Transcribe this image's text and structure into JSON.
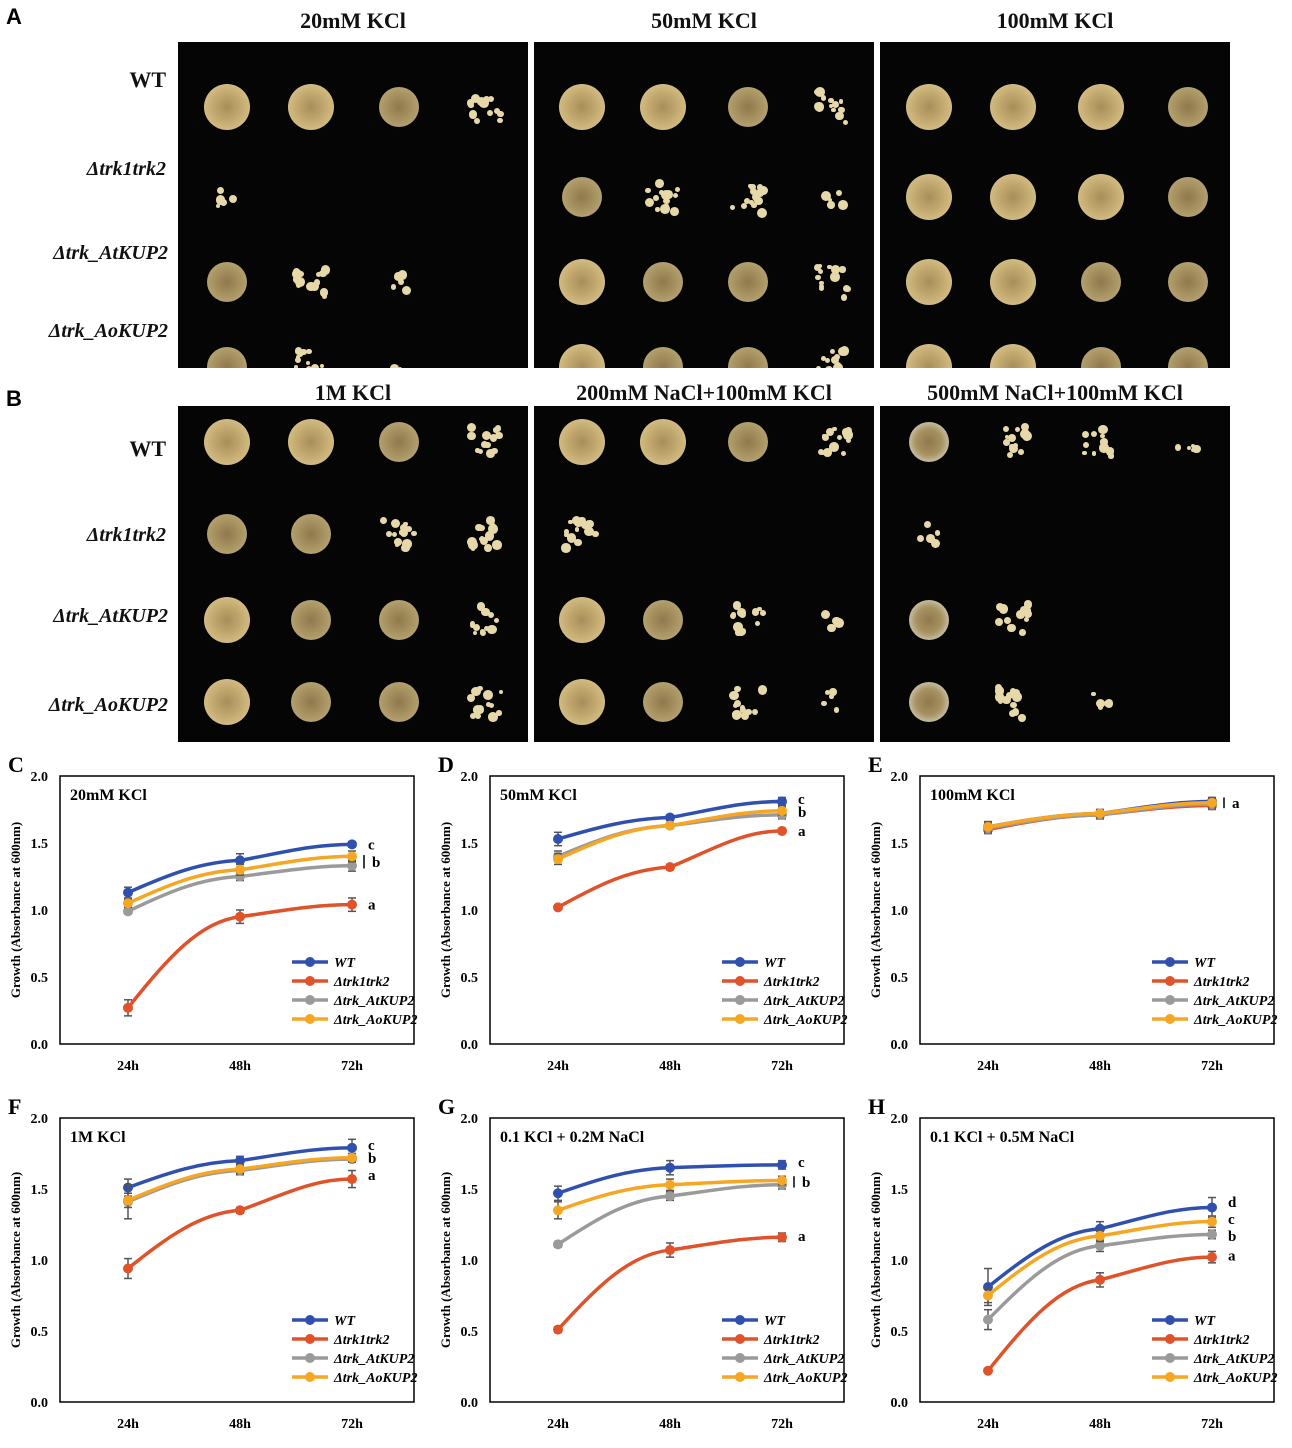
{
  "colors": {
    "WT": "#3050b0",
    "trk": "#e0522a",
    "AtKUP2": "#9a9a9a",
    "AoKUP2": "#f5a623",
    "plate": "#050505",
    "colony": "#d7c28a"
  },
  "spot_assay": {
    "panel_A": {
      "letter": "A",
      "conditions": [
        "20mM KCl",
        "50mM KCl",
        "100mM KCl"
      ]
    },
    "panel_B": {
      "letter": "B",
      "conditions": [
        "1M KCl",
        "200mM NaCl+100mM KCl",
        "500mM NaCl+100mM KCl"
      ]
    },
    "row_labels": [
      "WT",
      "Δtrk1trk2",
      "Δtrk_AtKUP2",
      "Δtrk_AoKUP2"
    ],
    "growth_scores_A": [
      [
        [
          4,
          4,
          3,
          2
        ],
        [
          1,
          0,
          0,
          0
        ],
        [
          3,
          2,
          1,
          0
        ],
        [
          3,
          2,
          1,
          0
        ]
      ],
      [
        [
          4,
          4,
          3,
          2
        ],
        [
          3,
          2,
          2,
          1
        ],
        [
          4,
          3,
          3,
          2
        ],
        [
          4,
          3,
          3,
          2
        ]
      ],
      [
        [
          4,
          4,
          4,
          3
        ],
        [
          4,
          4,
          4,
          3
        ],
        [
          4,
          4,
          3,
          3
        ],
        [
          4,
          4,
          3,
          3
        ]
      ]
    ],
    "growth_scores_B": [
      [
        [
          4,
          4,
          3,
          2
        ],
        [
          3,
          3,
          2,
          2
        ],
        [
          4,
          3,
          3,
          2
        ],
        [
          4,
          3,
          3,
          2
        ]
      ],
      [
        [
          4,
          4,
          3,
          2
        ],
        [
          2,
          0,
          0,
          0
        ],
        [
          4,
          3,
          2,
          1
        ],
        [
          4,
          3,
          2,
          1
        ]
      ],
      [
        [
          3,
          2,
          2,
          1
        ],
        [
          1,
          0,
          0,
          0
        ],
        [
          3,
          2,
          0,
          0
        ],
        [
          3,
          2,
          1,
          0
        ]
      ]
    ]
  },
  "chart_data": [
    {
      "letter": "C",
      "type": "line",
      "title": "20mM KCl",
      "ylabel": "Growth (Absorbance at 600nm)",
      "x": [
        "24h",
        "48h",
        "72h"
      ],
      "ylim": [
        0,
        2.0
      ],
      "yticks": [
        "0.0",
        "0.5",
        "1.0",
        "1.5",
        "2.0"
      ],
      "series": [
        {
          "name": "WT",
          "values": [
            1.13,
            1.37,
            1.49
          ],
          "err": [
            0.04,
            0.05,
            0.02
          ]
        },
        {
          "name": "Δtrk1trk2",
          "values": [
            0.27,
            0.95,
            1.04
          ],
          "err": [
            0.06,
            0.05,
            0.05
          ]
        },
        {
          "name": "Δtrk_AtKUP2",
          "values": [
            0.99,
            1.25,
            1.33
          ],
          "err": [
            0.02,
            0.03,
            0.04
          ]
        },
        {
          "name": "Δtrk_AoKUP2",
          "values": [
            1.05,
            1.3,
            1.4
          ],
          "err": [
            0.03,
            0.04,
            0.04
          ]
        }
      ],
      "sig": [
        {
          "label": "c",
          "value": 1.49
        },
        {
          "label": "b",
          "value": 1.36,
          "bar": [
            1.31,
            1.41
          ]
        },
        {
          "label": "a",
          "value": 1.04
        }
      ]
    },
    {
      "letter": "D",
      "type": "line",
      "title": "50mM KCl",
      "ylabel": "Growth (Absorbance at 600nm)",
      "x": [
        "24h",
        "48h",
        "72h"
      ],
      "ylim": [
        0,
        2.0
      ],
      "yticks": [
        "0.0",
        "0.5",
        "1.0",
        "1.5",
        "2.0"
      ],
      "series": [
        {
          "name": "WT",
          "values": [
            1.53,
            1.69,
            1.81
          ],
          "err": [
            0.05,
            0.02,
            0.03
          ]
        },
        {
          "name": "Δtrk1trk2",
          "values": [
            1.02,
            1.32,
            1.59
          ],
          "err": [
            0.01,
            0.02,
            0.02
          ]
        },
        {
          "name": "Δtrk_AtKUP2",
          "values": [
            1.4,
            1.63,
            1.71
          ],
          "err": [
            0.04,
            0.02,
            0.03
          ]
        },
        {
          "name": "Δtrk_AoKUP2",
          "values": [
            1.38,
            1.63,
            1.74
          ],
          "err": [
            0.04,
            0.02,
            0.03
          ]
        }
      ],
      "sig": [
        {
          "label": "c",
          "value": 1.83
        },
        {
          "label": "b",
          "value": 1.73
        },
        {
          "label": "a",
          "value": 1.59
        }
      ]
    },
    {
      "letter": "E",
      "type": "line",
      "title": "100mM KCl",
      "ylabel": "Growth (Absorbance at 600nm)",
      "x": [
        "24h",
        "48h",
        "72h"
      ],
      "ylim": [
        0,
        2.0
      ],
      "yticks": [
        "0.0",
        "0.5",
        "1.0",
        "1.5",
        "2.0"
      ],
      "series": [
        {
          "name": "WT",
          "values": [
            1.62,
            1.72,
            1.81
          ],
          "err": [
            0.04,
            0.03,
            0.03
          ]
        },
        {
          "name": "Δtrk1trk2",
          "values": [
            1.6,
            1.71,
            1.78
          ],
          "err": [
            0.03,
            0.03,
            0.03
          ]
        },
        {
          "name": "Δtrk_AtKUP2",
          "values": [
            1.61,
            1.71,
            1.79
          ],
          "err": [
            0.03,
            0.03,
            0.03
          ]
        },
        {
          "name": "Δtrk_AoKUP2",
          "values": [
            1.62,
            1.72,
            1.8
          ],
          "err": [
            0.03,
            0.03,
            0.03
          ]
        }
      ],
      "sig": [
        {
          "label": "a",
          "value": 1.8,
          "bar": [
            1.76,
            1.84
          ]
        }
      ]
    },
    {
      "letter": "F",
      "type": "line",
      "title": "1M KCl",
      "ylabel": "Growth (Absorbance at 600nm)",
      "x": [
        "24h",
        "48h",
        "72h"
      ],
      "ylim": [
        0,
        2.0
      ],
      "yticks": [
        "0.0",
        "0.5",
        "1.0",
        "1.5",
        "2.0"
      ],
      "series": [
        {
          "name": "WT",
          "values": [
            1.51,
            1.7,
            1.79
          ],
          "err": [
            0.06,
            0.03,
            0.06
          ]
        },
        {
          "name": "Δtrk1trk2",
          "values": [
            0.94,
            1.35,
            1.57
          ],
          "err": [
            0.07,
            0.02,
            0.06
          ]
        },
        {
          "name": "Δtrk_AtKUP2",
          "values": [
            1.41,
            1.63,
            1.71
          ],
          "err": [
            0.12,
            0.03,
            0.02
          ]
        },
        {
          "name": "Δtrk_AoKUP2",
          "values": [
            1.42,
            1.64,
            1.72
          ],
          "err": [
            0.05,
            0.03,
            0.03
          ]
        }
      ],
      "sig": [
        {
          "label": "c",
          "value": 1.81
        },
        {
          "label": "b",
          "value": 1.72
        },
        {
          "label": "a",
          "value": 1.6
        }
      ]
    },
    {
      "letter": "G",
      "type": "line",
      "title": "0.1 KCl + 0.2M NaCl",
      "ylabel": "Growth (Absorbance at 600nm)",
      "x": [
        "24h",
        "48h",
        "72h"
      ],
      "ylim": [
        0,
        2.0
      ],
      "yticks": [
        "0.0",
        "0.5",
        "1.0",
        "1.5",
        "2.0"
      ],
      "series": [
        {
          "name": "WT",
          "values": [
            1.47,
            1.65,
            1.67
          ],
          "err": [
            0.05,
            0.05,
            0.03
          ]
        },
        {
          "name": "Δtrk1trk2",
          "values": [
            0.51,
            1.07,
            1.16
          ],
          "err": [
            0.02,
            0.05,
            0.03
          ]
        },
        {
          "name": "Δtrk_AtKUP2",
          "values": [
            1.11,
            1.45,
            1.53
          ],
          "err": [
            0.02,
            0.03,
            0.03
          ]
        },
        {
          "name": "Δtrk_AoKUP2",
          "values": [
            1.35,
            1.53,
            1.56
          ],
          "err": [
            0.06,
            0.04,
            0.03
          ]
        }
      ],
      "sig": [
        {
          "label": "c",
          "value": 1.69
        },
        {
          "label": "b",
          "value": 1.55,
          "bar": [
            1.51,
            1.59
          ]
        },
        {
          "label": "a",
          "value": 1.17
        }
      ]
    },
    {
      "letter": "H",
      "type": "line",
      "title": "0.1 KCl + 0.5M NaCl",
      "ylabel": "Growth (Absorbance at 600nm)",
      "x": [
        "24h",
        "48h",
        "72h"
      ],
      "ylim": [
        0,
        2.0
      ],
      "yticks": [
        "0.0",
        "0.5",
        "1.0",
        "1.5",
        "2.0"
      ],
      "series": [
        {
          "name": "WT",
          "values": [
            0.81,
            1.22,
            1.37
          ],
          "err": [
            0.13,
            0.05,
            0.07
          ]
        },
        {
          "name": "Δtrk1trk2",
          "values": [
            0.22,
            0.86,
            1.02
          ],
          "err": [
            0.01,
            0.05,
            0.04
          ]
        },
        {
          "name": "Δtrk_AtKUP2",
          "values": [
            0.58,
            1.1,
            1.18
          ],
          "err": [
            0.07,
            0.04,
            0.03
          ]
        },
        {
          "name": "Δtrk_AoKUP2",
          "values": [
            0.75,
            1.17,
            1.27
          ],
          "err": [
            0.05,
            0.04,
            0.04
          ]
        }
      ],
      "sig": [
        {
          "label": "d",
          "value": 1.41
        },
        {
          "label": "c",
          "value": 1.29
        },
        {
          "label": "b",
          "value": 1.17
        },
        {
          "label": "a",
          "value": 1.03
        }
      ]
    }
  ]
}
